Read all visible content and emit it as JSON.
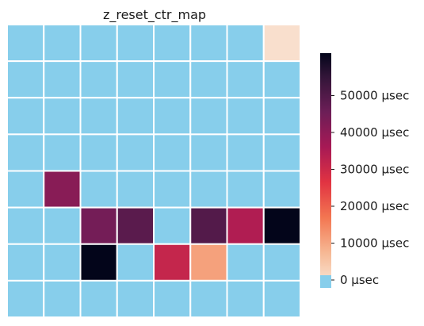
{
  "chart_data": {
    "type": "heatmap",
    "title": "z_reset_ctr_map",
    "rows": 8,
    "cols": 8,
    "values": [
      [
        0,
        0,
        0,
        0,
        0,
        0,
        0,
        2000
      ],
      [
        0,
        0,
        0,
        0,
        0,
        0,
        0,
        0
      ],
      [
        0,
        0,
        0,
        0,
        0,
        0,
        0,
        0
      ],
      [
        0,
        0,
        0,
        0,
        0,
        0,
        0,
        0
      ],
      [
        0,
        40000,
        0,
        0,
        0,
        0,
        0,
        0
      ],
      [
        0,
        0,
        43000,
        47000,
        0,
        48000,
        34000,
        60000
      ],
      [
        0,
        0,
        61000,
        0,
        31000,
        12000,
        0,
        0
      ],
      [
        0,
        0,
        0,
        0,
        0,
        0,
        0,
        0
      ]
    ],
    "mask_value": 0,
    "vmin": 0,
    "vmax": 59000,
    "zero_color": "#87CEEB",
    "colormap": "rocket_r",
    "colorbar": {
      "ticks": [
        {
          "value": 0,
          "label": "0 µsec"
        },
        {
          "value": 10000,
          "label": "10000 µsec"
        },
        {
          "value": 20000,
          "label": "20000 µsec"
        },
        {
          "value": 30000,
          "label": "30000 µsec"
        },
        {
          "value": 40000,
          "label": "40000 µsec"
        },
        {
          "value": 50000,
          "label": "50000 µsec"
        }
      ]
    },
    "gridline_color": "#ffffff"
  }
}
